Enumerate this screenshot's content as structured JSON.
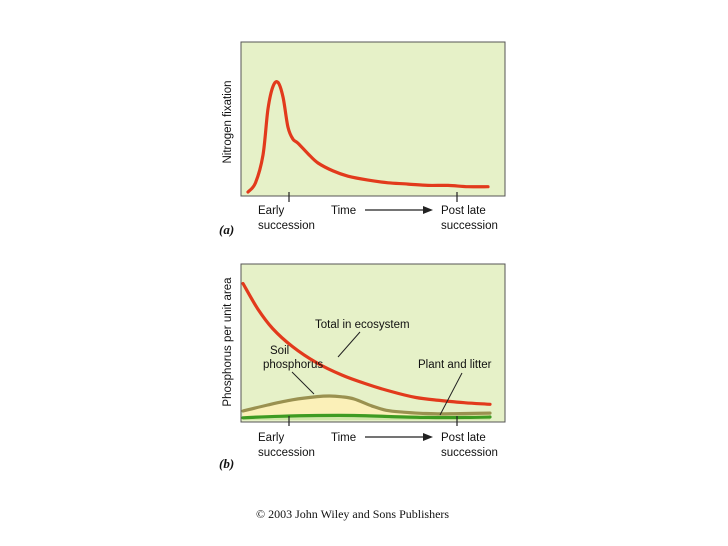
{
  "chart_data": [
    {
      "type": "line",
      "panel_label": "(a)",
      "ylabel": "Nitrogen fixation",
      "xlabel": "Time",
      "x_tick_labels": [
        {
          "lines": [
            "Early",
            "succession"
          ]
        },
        {
          "lines": [
            "Post late",
            "succession"
          ]
        }
      ],
      "xlim": [
        0,
        100
      ],
      "ylim": [
        0,
        100
      ],
      "grid": false,
      "colors": {
        "background": "#e6f1c8",
        "line": "#e23a1c"
      },
      "series": [
        {
          "x": [
            0,
            3,
            6,
            8,
            10,
            12,
            14,
            16,
            18,
            20,
            24,
            28,
            34,
            40,
            48,
            56,
            64,
            72,
            80,
            88,
            96
          ],
          "y": [
            0,
            7,
            28,
            63,
            80,
            83,
            72,
            49,
            40,
            37,
            29,
            22,
            16,
            12,
            9,
            7,
            6,
            5,
            5,
            4,
            4
          ]
        }
      ]
    },
    {
      "type": "area",
      "panel_label": "(b)",
      "ylabel": "Phosphorus per unit area",
      "xlabel": "Time",
      "x_tick_labels": [
        {
          "lines": [
            "Early",
            "succession"
          ]
        },
        {
          "lines": [
            "Post late",
            "succession"
          ]
        }
      ],
      "xlim": [
        0,
        100
      ],
      "ylim": [
        0,
        100
      ],
      "grid": false,
      "colors": {
        "background": "#e6f1c8",
        "total": "#e23a1c",
        "soil": "#9a9150",
        "soil_fill": "#fbf0b8",
        "plant": "#3e9b22"
      },
      "annotations": [
        {
          "text": "Total in ecosystem"
        },
        {
          "lines": [
            "Soil",
            "phosphorus"
          ]
        },
        {
          "text": "Plant and litter"
        }
      ],
      "series": [
        {
          "name": "Total in ecosystem",
          "x": [
            0,
            6,
            12,
            20,
            30,
            40,
            50,
            60,
            70,
            80,
            90,
            100
          ],
          "y": [
            91,
            74,
            61,
            49,
            38,
            30,
            24,
            19,
            15,
            13,
            11.5,
            10.5
          ]
        },
        {
          "name": "Soil phosphorus",
          "x": [
            0,
            10,
            20,
            30,
            35,
            40,
            45,
            52,
            58,
            65,
            72,
            80,
            88,
            100
          ],
          "y": [
            6,
            10,
            13.5,
            15.6,
            16,
            15.5,
            14,
            9.5,
            6.5,
            5.2,
            4.5,
            4.1,
            4.3,
            4.6
          ]
        },
        {
          "name": "Plant and litter",
          "x": [
            0,
            15,
            30,
            45,
            60,
            75,
            90,
            100
          ],
          "y": [
            1.5,
            2.5,
            3,
            3,
            2.3,
            1.7,
            1.7,
            2
          ]
        }
      ]
    }
  ],
  "copyright": "© 2003 John Wiley and Sons Publishers"
}
